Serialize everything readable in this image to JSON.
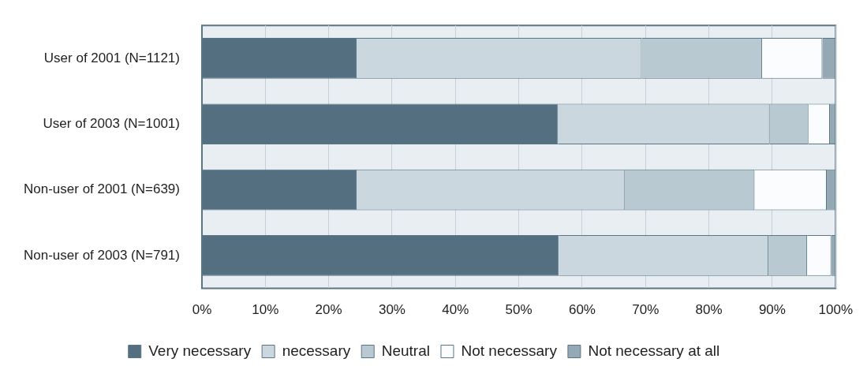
{
  "chart_data": {
    "type": "bar",
    "orientation": "horizontal",
    "stacked": true,
    "categories": [
      "User of 2001 (N=1121)",
      "User of 2003 (N=1001)",
      "Non-user of 2001 (N=639)",
      "Non-user of 2003 (N=791)"
    ],
    "series": [
      {
        "name": "Very necessary",
        "color": "#536f80",
        "values": [
          24.4,
          56.2,
          24.4,
          56.3
        ]
      },
      {
        "name": "necessary",
        "color": "#cad7de",
        "values": [
          45.0,
          33.4,
          42.3,
          33.1
        ]
      },
      {
        "name": "Neutral",
        "color": "#b8c9d1",
        "values": [
          19.0,
          6.1,
          20.5,
          6.1
        ]
      },
      {
        "name": "Not necessary",
        "color": "#fbfcfd",
        "values": [
          9.5,
          3.4,
          11.4,
          3.8
        ]
      },
      {
        "name": "Not necessary at all",
        "color": "#95a9b5",
        "values": [
          2.1,
          0.9,
          1.4,
          0.7
        ]
      }
    ],
    "xlim": [
      0,
      100
    ],
    "xticks": [
      {
        "value": 0,
        "label": "0%"
      },
      {
        "value": 10,
        "label": "10%"
      },
      {
        "value": 20,
        "label": "20%"
      },
      {
        "value": 30,
        "label": "30%"
      },
      {
        "value": 40,
        "label": "40%"
      },
      {
        "value": 50,
        "label": "50%"
      },
      {
        "value": 60,
        "label": "60%"
      },
      {
        "value": 70,
        "label": "70%"
      },
      {
        "value": 80,
        "label": "80%"
      },
      {
        "value": 90,
        "label": "90%"
      },
      {
        "value": 100,
        "label": "100%"
      }
    ],
    "grid": "x",
    "legend": "bottom"
  }
}
